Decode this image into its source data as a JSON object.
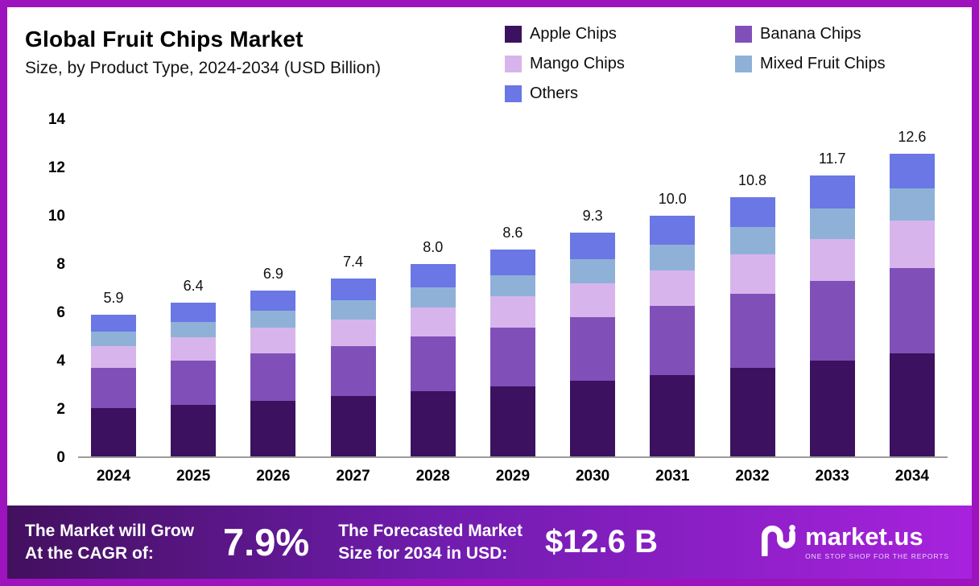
{
  "header": {
    "title": "Global Fruit Chips Market",
    "subtitle": "Size, by  Product Type, 2024-2034 (USD Billion)"
  },
  "legend": {
    "items": [
      {
        "label": "Apple Chips",
        "color": "#3b1160"
      },
      {
        "label": "Banana Chips",
        "color": "#8050b8"
      },
      {
        "label": "Mango Chips",
        "color": "#d7b5ec"
      },
      {
        "label": "Mixed Fruit Chips",
        "color": "#8fb1d8"
      },
      {
        "label": "Others",
        "color": "#6a77e5"
      }
    ]
  },
  "chart_data": {
    "type": "bar",
    "stacked": true,
    "title": "Global Fruit Chips Market Size, by Product Type, 2024-2034 (USD Billion)",
    "categories": [
      "2024",
      "2025",
      "2026",
      "2027",
      "2028",
      "2029",
      "2030",
      "2031",
      "2032",
      "2033",
      "2034"
    ],
    "series": [
      {
        "name": "Apple Chips",
        "color": "#3b1160",
        "values": [
          2.0,
          2.15,
          2.3,
          2.5,
          2.7,
          2.9,
          3.15,
          3.4,
          3.7,
          4.0,
          4.3
        ]
      },
      {
        "name": "Banana Chips",
        "color": "#8050b8",
        "values": [
          1.7,
          1.85,
          2.0,
          2.1,
          2.3,
          2.45,
          2.65,
          2.85,
          3.05,
          3.3,
          3.55
        ]
      },
      {
        "name": "Mango Chips",
        "color": "#d7b5ec",
        "values": [
          0.9,
          0.95,
          1.05,
          1.1,
          1.2,
          1.3,
          1.4,
          1.5,
          1.65,
          1.75,
          1.95
        ]
      },
      {
        "name": "Mixed Fruit Chips",
        "color": "#8fb1d8",
        "values": [
          0.6,
          0.65,
          0.7,
          0.8,
          0.85,
          0.9,
          1.0,
          1.05,
          1.15,
          1.25,
          1.35
        ]
      },
      {
        "name": "Others",
        "color": "#6a77e5",
        "values": [
          0.7,
          0.8,
          0.85,
          0.9,
          0.95,
          1.05,
          1.1,
          1.2,
          1.25,
          1.4,
          1.45
        ]
      }
    ],
    "totals": [
      "5.9",
      "6.4",
      "6.9",
      "7.4",
      "8.0",
      "8.6",
      "9.3",
      "10.0",
      "10.8",
      "11.7",
      "12.6"
    ],
    "xlabel": "",
    "ylabel": "",
    "ylim": [
      0,
      14
    ],
    "yticks": [
      0,
      2,
      4,
      6,
      8,
      10,
      12,
      14
    ],
    "grid": false,
    "legend_position": "top-right"
  },
  "footer": {
    "cagr_label_line1": "The Market will Grow",
    "cagr_label_line2": "At the CAGR of:",
    "cagr_value": "7.9%",
    "forecast_label_line1": "The Forecasted Market",
    "forecast_label_line2": "Size for 2034 in USD:",
    "forecast_value": "$12.6 B",
    "brand_name": "market.us",
    "brand_tagline": "ONE STOP SHOP FOR THE REPORTS"
  }
}
